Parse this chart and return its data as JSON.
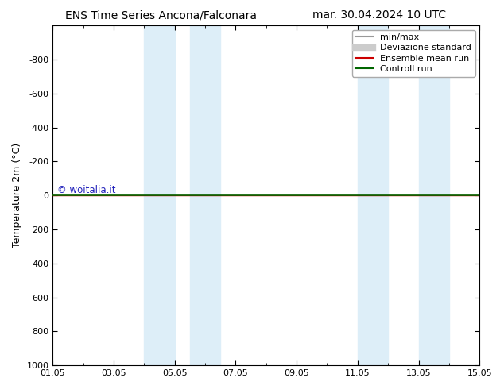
{
  "title_left": "ENS Time Series Ancona/Falconara",
  "title_right": "mar. 30.04.2024 10 UTC",
  "ylabel": "Temperature 2m (°C)",
  "xtick_labels": [
    "01.05",
    "03.05",
    "05.05",
    "07.05",
    "09.05",
    "11.05",
    "13.05",
    "15.05"
  ],
  "xtick_positions": [
    0,
    2,
    4,
    6,
    8,
    10,
    12,
    14
  ],
  "ylim": [
    -1000,
    1000
  ],
  "yticks": [
    -800,
    -600,
    -400,
    -200,
    0,
    200,
    400,
    600,
    800,
    1000
  ],
  "x_min": 0,
  "x_max": 14,
  "shaded_regions": [
    {
      "x_start": 3.0,
      "x_end": 4.0,
      "color": "#ddeef8"
    },
    {
      "x_start": 4.5,
      "x_end": 5.5,
      "color": "#ddeef8"
    },
    {
      "x_start": 10.0,
      "x_end": 11.0,
      "color": "#ddeef8"
    },
    {
      "x_start": 12.0,
      "x_end": 13.0,
      "color": "#ddeef8"
    }
  ],
  "control_run_y": 0.0,
  "ensemble_mean_y": 0.0,
  "control_run_color": "#006600",
  "ensemble_mean_color": "#cc0000",
  "minmax_color": "#999999",
  "devstd_color": "#cccccc",
  "watermark_text": "© woitalia.it",
  "watermark_color": "#2222bb",
  "legend_entries": [
    "min/max",
    "Deviazione standard",
    "Ensemble mean run",
    "Controll run"
  ],
  "font_size_title": 10,
  "font_size_axis": 9,
  "font_size_ticks": 8,
  "font_size_legend": 8,
  "background_color": "#ffffff"
}
